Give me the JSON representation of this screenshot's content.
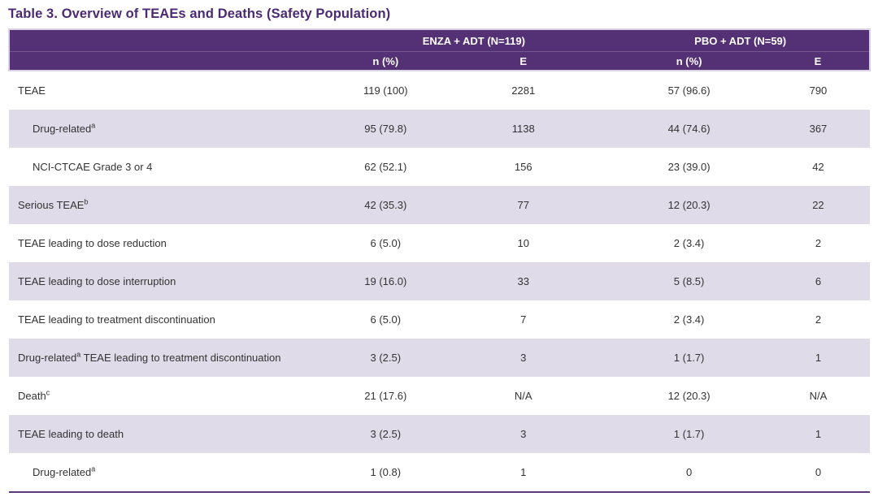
{
  "title": "Table 3. Overview of TEAEs and Deaths (Safety Population)",
  "colors": {
    "header_bg": "#543175",
    "header_text": "#ffffff",
    "header_edge": "#d9d3e4",
    "alt_row_bg": "#e0dbe9",
    "title_text": "#4b2a74",
    "body_text": "#333333",
    "bottom_rule": "#5a3a7e"
  },
  "table": {
    "group_headers": [
      "ENZA + ADT (N=119)",
      "PBO + ADT (N=59)"
    ],
    "subheaders": [
      "n (%)",
      "E",
      "n (%)",
      "E"
    ],
    "rows": [
      {
        "label_pre": "TEAE",
        "label_sup": "",
        "label_post": "",
        "indent": false,
        "values": [
          "119 (100)",
          "2281",
          "57 (96.6)",
          "790"
        ]
      },
      {
        "label_pre": "Drug-related",
        "label_sup": "a",
        "label_post": "",
        "indent": true,
        "values": [
          "95 (79.8)",
          "1138",
          "44 (74.6)",
          "367"
        ]
      },
      {
        "label_pre": "NCI-CTCAE Grade 3 or 4",
        "label_sup": "",
        "label_post": "",
        "indent": true,
        "values": [
          "62 (52.1)",
          "156",
          "23 (39.0)",
          "42"
        ]
      },
      {
        "label_pre": "Serious TEAE",
        "label_sup": "b",
        "label_post": "",
        "indent": false,
        "values": [
          "42 (35.3)",
          "77",
          "12 (20.3)",
          "22"
        ]
      },
      {
        "label_pre": "TEAE leading to dose reduction",
        "label_sup": "",
        "label_post": "",
        "indent": false,
        "values": [
          "6 (5.0)",
          "10",
          "2 (3.4)",
          "2"
        ]
      },
      {
        "label_pre": "TEAE leading to dose interruption",
        "label_sup": "",
        "label_post": "",
        "indent": false,
        "values": [
          "19 (16.0)",
          "33",
          "5 (8.5)",
          "6"
        ]
      },
      {
        "label_pre": "TEAE leading to treatment discontinuation",
        "label_sup": "",
        "label_post": "",
        "indent": false,
        "values": [
          "6 (5.0)",
          "7",
          "2 (3.4)",
          "2"
        ]
      },
      {
        "label_pre": "Drug-related",
        "label_sup": "a",
        "label_post": " TEAE leading to treatment discontinuation",
        "indent": false,
        "values": [
          "3 (2.5)",
          "3",
          "1 (1.7)",
          "1"
        ]
      },
      {
        "label_pre": "Death",
        "label_sup": "c",
        "label_post": "",
        "indent": false,
        "values": [
          "21 (17.6)",
          "N/A",
          "12 (20.3)",
          "N/A"
        ]
      },
      {
        "label_pre": "TEAE leading to death",
        "label_sup": "",
        "label_post": "",
        "indent": false,
        "values": [
          "3 (2.5)",
          "3",
          "1 (1.7)",
          "1"
        ]
      },
      {
        "label_pre": "Drug-related",
        "label_sup": "a",
        "label_post": "",
        "indent": true,
        "values": [
          "1 (0.8)",
          "1",
          "0",
          "0"
        ]
      }
    ]
  }
}
